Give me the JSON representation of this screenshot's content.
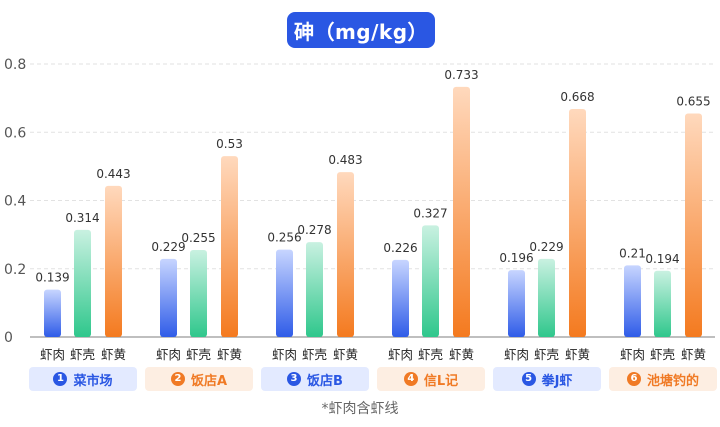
{
  "title": "砷（mg/kg）",
  "footnote": "*虾肉含虾线",
  "chart_data": {
    "type": "bar",
    "title": "砷（mg/kg）",
    "ylim": [
      0,
      0.8
    ],
    "yticks": [
      0,
      0.2,
      0.4,
      0.6,
      0.8
    ],
    "ytick_labels": [
      "0",
      "0.2",
      "0.4",
      "0.6",
      "0.8"
    ],
    "grid": true,
    "sub_categories": [
      "虾肉",
      "虾壳",
      "虾黄"
    ],
    "groups": [
      {
        "num": "1",
        "name": "菜市场",
        "theme": "blue",
        "values": [
          0.139,
          0.314,
          0.443
        ],
        "labels": [
          "0.139",
          "0.314",
          "0.443"
        ]
      },
      {
        "num": "2",
        "name": "饭店A",
        "theme": "orange",
        "values": [
          0.229,
          0.255,
          0.53
        ],
        "labels": [
          "0.229",
          "0.255",
          "0.53"
        ]
      },
      {
        "num": "3",
        "name": "饭店B",
        "theme": "blue",
        "values": [
          0.256,
          0.278,
          0.483
        ],
        "labels": [
          "0.256",
          "0.278",
          "0.483"
        ]
      },
      {
        "num": "4",
        "name": "信L记",
        "theme": "orange",
        "values": [
          0.226,
          0.327,
          0.733
        ],
        "labels": [
          "0.226",
          "0.327",
          "0.733"
        ]
      },
      {
        "num": "5",
        "name": "拳J虾",
        "theme": "blue",
        "values": [
          0.196,
          0.229,
          0.668
        ],
        "labels": [
          "0.196",
          "0.229",
          "0.668"
        ]
      },
      {
        "num": "6",
        "name": "池塘钓的",
        "theme": "orange",
        "values": [
          0.21,
          0.194,
          0.655
        ],
        "labels": [
          "0.21",
          "0.194",
          "0.655"
        ]
      }
    ],
    "colors": {
      "虾肉": "#3f6ff0",
      "虾壳": "#3dcf9a",
      "虾黄": "#f5883a"
    }
  }
}
